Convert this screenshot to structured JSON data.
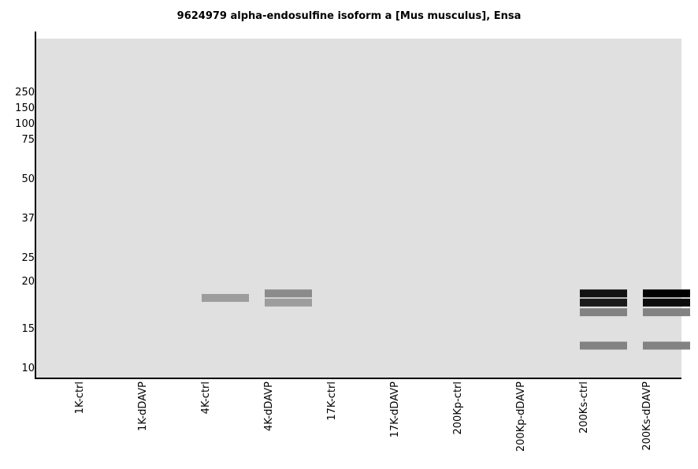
{
  "chart_data": {
    "type": "heatmap",
    "title": "9624979 alpha-endosulfine isoform a [Mus musculus], Ensa",
    "xlabel": "",
    "ylabel": "",
    "y_scale": "log",
    "y_ticks": [
      250,
      150,
      100,
      75,
      50,
      37,
      25,
      20,
      15,
      10
    ],
    "lanes": [
      "1K-ctrl",
      "1K-dDAVP",
      "4K-ctrl",
      "4K-dDAVP",
      "17K-ctrl",
      "17K-dDAVP",
      "200Kp-ctrl",
      "200Kp-dDAVP",
      "200Ks-ctrl",
      "200Ks-dDAVP"
    ],
    "bands": [
      {
        "lane": "4K-ctrl",
        "mw": 18,
        "intensity": 0.3
      },
      {
        "lane": "4K-dDAVP",
        "mw": 18.5,
        "intensity": 0.38
      },
      {
        "lane": "4K-dDAVP",
        "mw": 17.5,
        "intensity": 0.3
      },
      {
        "lane": "200Ks-ctrl",
        "mw": 18.5,
        "intensity": 0.92
      },
      {
        "lane": "200Ks-ctrl",
        "mw": 17.5,
        "intensity": 0.88
      },
      {
        "lane": "200Ks-ctrl",
        "mw": 16.5,
        "intensity": 0.42
      },
      {
        "lane": "200Ks-ctrl",
        "mw": 12.5,
        "intensity": 0.42
      },
      {
        "lane": "200Ks-dDAVP",
        "mw": 18.5,
        "intensity": 1.0
      },
      {
        "lane": "200Ks-dDAVP",
        "mw": 17.5,
        "intensity": 0.94
      },
      {
        "lane": "200Ks-dDAVP",
        "mw": 16.5,
        "intensity": 0.42
      },
      {
        "lane": "200Ks-dDAVP",
        "mw": 12.5,
        "intensity": 0.42
      }
    ],
    "colors": {
      "background": "#dfe0df",
      "band": "#000000",
      "axis": "#000000"
    }
  }
}
